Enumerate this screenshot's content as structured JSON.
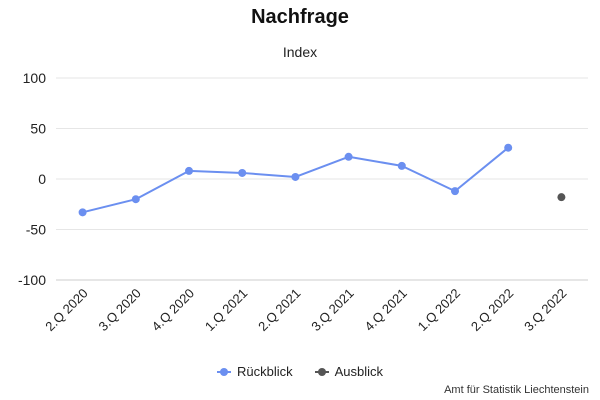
{
  "chart_data": {
    "type": "line",
    "title": "Nachfrage",
    "subtitle": "Index",
    "categories": [
      "2.Q 2020",
      "3.Q 2020",
      "4.Q 2020",
      "1.Q 2021",
      "2.Q 2021",
      "3.Q 2021",
      "4.Q 2021",
      "1.Q 2022",
      "2.Q 2022",
      "3.Q 2022"
    ],
    "ylim": [
      -100,
      100
    ],
    "yticks": [
      100,
      50,
      0,
      -50,
      -100
    ],
    "grid": true,
    "legend_position": "bottom",
    "series": [
      {
        "name": "Rückblick",
        "color": "#6b8ff0",
        "values": [
          -33,
          -20,
          8,
          6,
          2,
          22,
          13,
          -12,
          31,
          null
        ]
      },
      {
        "name": "Ausblick",
        "color": "#555555",
        "values": [
          null,
          null,
          null,
          null,
          null,
          null,
          null,
          null,
          null,
          -18
        ]
      }
    ],
    "credit": "Amt für Statistik Liechtenstein"
  }
}
